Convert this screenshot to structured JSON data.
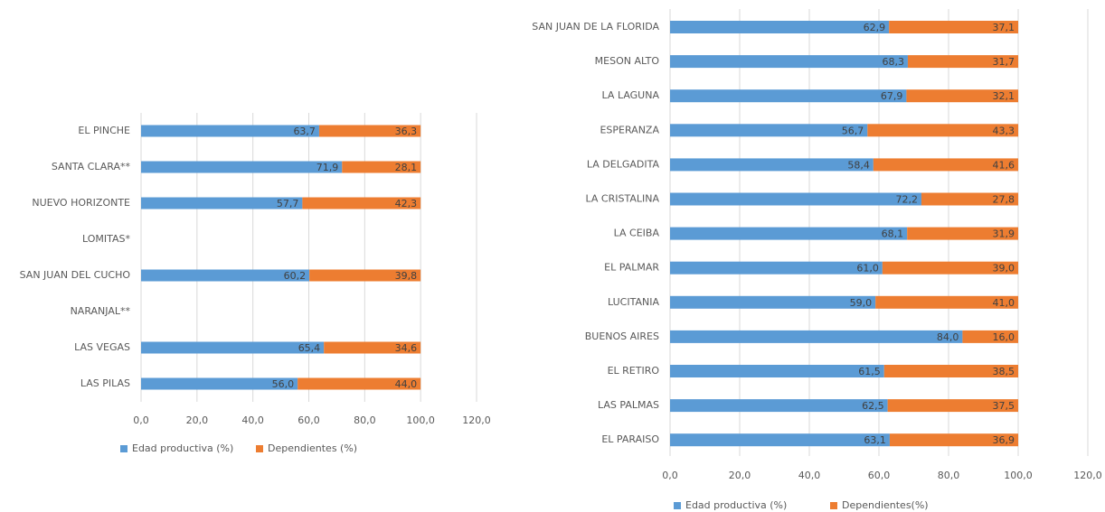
{
  "chart_data": [
    {
      "type": "stacked_bar_horizontal",
      "categories": [
        "EL PINCHE",
        "SANTA CLARA**",
        "NUEVO HORIZONTE",
        "LOMITAS*",
        "SAN JUAN DEL CUCHO",
        "NARANJAL**",
        "LAS VEGAS",
        "LAS PILAS"
      ],
      "series": [
        {
          "name": "Edad productiva (%)",
          "color": "#5b9bd5",
          "values": [
            63.7,
            71.9,
            57.7,
            null,
            60.2,
            null,
            65.4,
            56.0
          ],
          "value_labels": [
            "63,7",
            "71,9",
            "57,7",
            null,
            "60,2",
            null,
            "65,4",
            "56,0"
          ]
        },
        {
          "name": "Dependientes (%)",
          "color": "#ed7d31",
          "values": [
            36.3,
            28.1,
            42.3,
            null,
            39.8,
            null,
            34.6,
            44.0
          ],
          "value_labels": [
            "36,3",
            "28,1",
            "42,3",
            null,
            "39,8",
            null,
            "34,6",
            "44,0"
          ]
        }
      ],
      "xlim": [
        0,
        120
      ],
      "xticks": [
        {
          "value": 0,
          "label": "0,0"
        },
        {
          "value": 20,
          "label": "20,0"
        },
        {
          "value": 40,
          "label": "40,0"
        },
        {
          "value": 60,
          "label": "60,0"
        },
        {
          "value": 80,
          "label": "80,0"
        },
        {
          "value": 100,
          "label": "100,0"
        },
        {
          "value": 120,
          "label": "120,0"
        }
      ],
      "grid": true,
      "legend": "bottom"
    },
    {
      "type": "stacked_bar_horizontal",
      "categories": [
        "SAN JUAN DE LA FLORIDA",
        "MESON ALTO",
        "LA LAGUNA",
        "ESPERANZA",
        "LA DELGADITA",
        "LA CRISTALINA",
        "LA CEIBA",
        "EL PALMAR",
        "LUCITANIA",
        "BUENOS AIRES",
        "EL RETIRO",
        "LAS PALMAS",
        "EL PARAISO"
      ],
      "series": [
        {
          "name": "Edad productiva (%)",
          "color": "#5b9bd5",
          "values": [
            62.9,
            68.3,
            67.9,
            56.7,
            58.4,
            72.2,
            68.1,
            61.0,
            59.0,
            84.0,
            61.5,
            62.5,
            63.1
          ],
          "value_labels": [
            "62,9",
            "68,3",
            "67,9",
            "56,7",
            "58,4",
            "72,2",
            "68,1",
            "61,0",
            "59,0",
            "84,0",
            "61,5",
            "62,5",
            "63,1"
          ]
        },
        {
          "name": "Dependientes(%)",
          "color": "#ed7d31",
          "values": [
            37.1,
            31.7,
            32.1,
            43.3,
            41.6,
            27.8,
            31.9,
            39.0,
            41.0,
            16.0,
            38.5,
            37.5,
            36.9
          ],
          "value_labels": [
            "37,1",
            "31,7",
            "32,1",
            "43,3",
            "41,6",
            "27,8",
            "31,9",
            "39,0",
            "41,0",
            "16,0",
            "38,5",
            "37,5",
            "36,9"
          ]
        }
      ],
      "xlim": [
        0,
        120
      ],
      "xticks": [
        {
          "value": 0,
          "label": "0,0"
        },
        {
          "value": 20,
          "label": "20,0"
        },
        {
          "value": 40,
          "label": "40,0"
        },
        {
          "value": 60,
          "label": "60,0"
        },
        {
          "value": 80,
          "label": "80,0"
        },
        {
          "value": 100,
          "label": "100,0"
        },
        {
          "value": 120,
          "label": "120,0"
        }
      ],
      "grid": true,
      "legend": "bottom"
    }
  ]
}
